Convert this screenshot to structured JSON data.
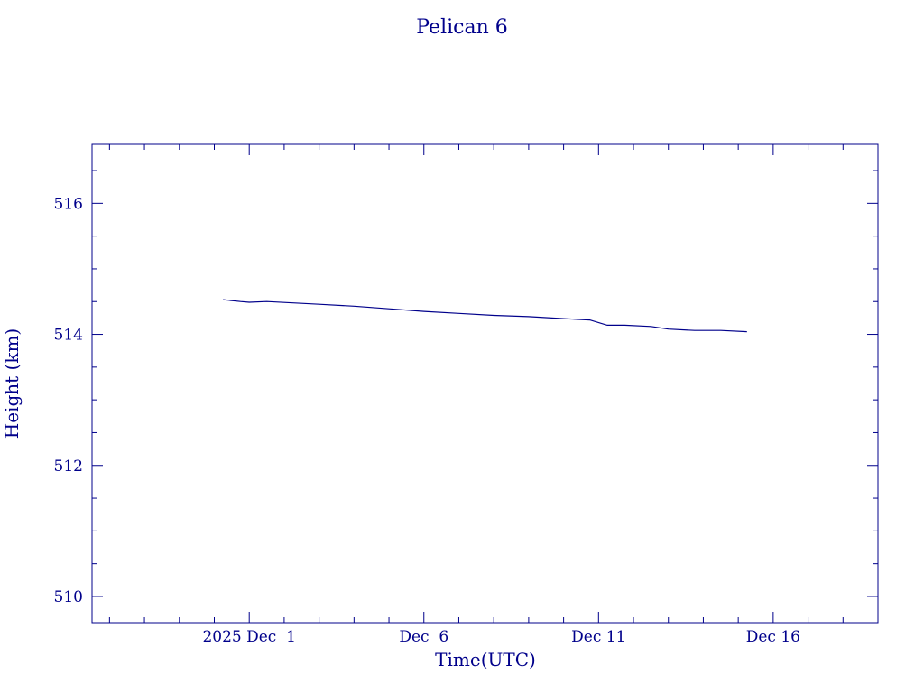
{
  "chart_data": {
    "type": "line",
    "title": "Pelican 6",
    "xlabel": "Time(UTC)",
    "ylabel": "Height (km)",
    "x_tick_labels": [
      "2025 Dec  1",
      "Dec  6",
      "Dec 11",
      "Dec 16"
    ],
    "x_tick_dates": [
      "2025-12-01",
      "2025-12-06",
      "2025-12-11",
      "2025-12-16"
    ],
    "xlim": [
      "2025-11-26T12:00",
      "2025-12-19T00:00"
    ],
    "y_ticks": [
      510,
      512,
      514,
      516
    ],
    "y_tick_labels": [
      "510",
      "512",
      "514",
      "516"
    ],
    "ylim": [
      509.6,
      516.9
    ],
    "grid": false,
    "color": "#00008b",
    "series": [
      {
        "x": [
          "2025-11-30T06:00",
          "2025-11-30T18:00",
          "2025-12-01T00:00",
          "2025-12-01T12:00",
          "2025-12-03T00:00",
          "2025-12-04T00:00",
          "2025-12-05T00:00",
          "2025-12-06T00:00",
          "2025-12-07T00:00",
          "2025-12-08T00:00",
          "2025-12-09T00:00",
          "2025-12-10T00:00",
          "2025-12-10T18:00",
          "2025-12-11T06:00",
          "2025-12-11T18:00",
          "2025-12-12T12:00",
          "2025-12-13T00:00",
          "2025-12-13T18:00",
          "2025-12-14T12:00",
          "2025-12-15T06:00"
        ],
        "y": [
          514.53,
          514.5,
          514.49,
          514.5,
          514.46,
          514.43,
          514.39,
          514.35,
          514.32,
          514.29,
          514.27,
          514.24,
          514.22,
          514.14,
          514.14,
          514.12,
          514.08,
          514.06,
          514.06,
          514.04
        ]
      }
    ]
  }
}
